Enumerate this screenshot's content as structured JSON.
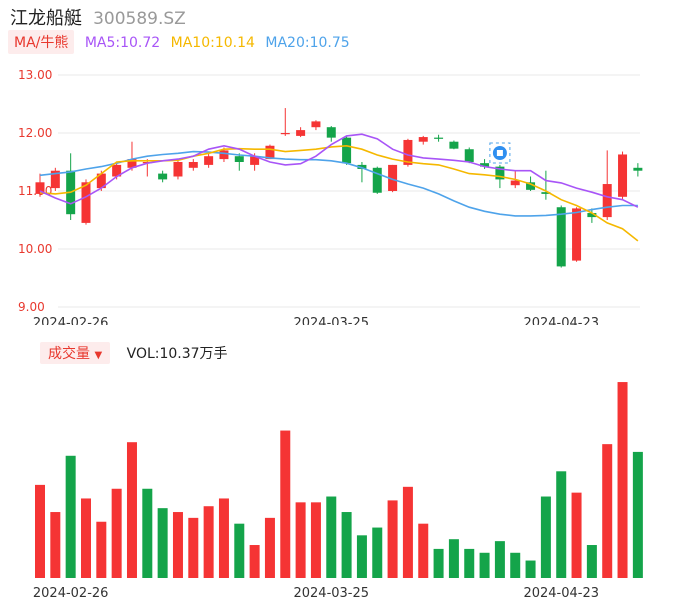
{
  "header": {
    "name": "江龙船艇",
    "code": "300589.SZ"
  },
  "ma": {
    "tag": "MA/牛熊",
    "items": [
      {
        "label": "MA5:10.72",
        "color": "#a855f7"
      },
      {
        "label": "MA10:10.14",
        "color": "#f5b800"
      },
      {
        "label": "MA20:10.75",
        "color": "#4ea3ea"
      }
    ]
  },
  "volume": {
    "tag": "成交量",
    "tag_arrow": "▼",
    "label": "VOL:10.37万手"
  },
  "colors": {
    "up": "#f53434",
    "down": "#14a44a",
    "grid": "#e9e9e9",
    "axis_text": "#e8382e",
    "date_text": "#333333"
  },
  "chart_data": [
    {
      "type": "candlestick",
      "title": "",
      "yticks": [
        "13.00",
        "12.00",
        "11.00",
        "10.00",
        "9.00"
      ],
      "ylim": [
        9.0,
        13.0
      ],
      "xlabels": [
        {
          "index": 2,
          "text": "2024-02-26"
        },
        {
          "index": 19,
          "text": "2024-03-25"
        },
        {
          "index": 34,
          "text": "2024-04-23"
        }
      ],
      "candles": [
        {
          "o": 10.95,
          "h": 11.3,
          "l": 10.9,
          "c": 11.15
        },
        {
          "o": 11.05,
          "h": 11.4,
          "l": 11.0,
          "c": 11.35
        },
        {
          "o": 11.35,
          "h": 11.65,
          "l": 10.5,
          "c": 10.6
        },
        {
          "o": 10.45,
          "h": 11.2,
          "l": 10.42,
          "c": 11.15
        },
        {
          "o": 11.05,
          "h": 11.35,
          "l": 11.0,
          "c": 11.3
        },
        {
          "o": 11.25,
          "h": 11.5,
          "l": 11.2,
          "c": 11.45
        },
        {
          "o": 11.4,
          "h": 11.85,
          "l": 11.35,
          "c": 11.55
        },
        {
          "o": 11.5,
          "h": 11.55,
          "l": 11.25,
          "c": 11.5
        },
        {
          "o": 11.3,
          "h": 11.35,
          "l": 11.15,
          "c": 11.2
        },
        {
          "o": 11.25,
          "h": 11.55,
          "l": 11.2,
          "c": 11.5
        },
        {
          "o": 11.4,
          "h": 11.55,
          "l": 11.35,
          "c": 11.5
        },
        {
          "o": 11.45,
          "h": 11.65,
          "l": 11.4,
          "c": 11.6
        },
        {
          "o": 11.55,
          "h": 11.75,
          "l": 11.5,
          "c": 11.7
        },
        {
          "o": 11.6,
          "h": 11.65,
          "l": 11.35,
          "c": 11.5
        },
        {
          "o": 11.45,
          "h": 11.65,
          "l": 11.35,
          "c": 11.6
        },
        {
          "o": 11.55,
          "h": 11.8,
          "l": 11.55,
          "c": 11.78
        },
        {
          "o": 11.98,
          "h": 12.43,
          "l": 11.95,
          "c": 12.0
        },
        {
          "o": 11.95,
          "h": 12.1,
          "l": 11.93,
          "c": 12.05
        },
        {
          "o": 12.1,
          "h": 12.22,
          "l": 12.05,
          "c": 12.2
        },
        {
          "o": 12.1,
          "h": 12.12,
          "l": 11.85,
          "c": 11.92
        },
        {
          "o": 11.92,
          "h": 11.95,
          "l": 11.45,
          "c": 11.48
        },
        {
          "o": 11.45,
          "h": 11.5,
          "l": 11.15,
          "c": 11.38
        },
        {
          "o": 11.4,
          "h": 11.42,
          "l": 10.95,
          "c": 10.97
        },
        {
          "o": 11.0,
          "h": 11.45,
          "l": 10.98,
          "c": 11.45
        },
        {
          "o": 11.45,
          "h": 11.9,
          "l": 11.42,
          "c": 11.88
        },
        {
          "o": 11.85,
          "h": 11.95,
          "l": 11.8,
          "c": 11.93
        },
        {
          "o": 11.92,
          "h": 11.97,
          "l": 11.85,
          "c": 11.9
        },
        {
          "o": 11.85,
          "h": 11.87,
          "l": 11.72,
          "c": 11.73
        },
        {
          "o": 11.72,
          "h": 11.75,
          "l": 11.48,
          "c": 11.5
        },
        {
          "o": 11.48,
          "h": 11.55,
          "l": 11.38,
          "c": 11.42
        },
        {
          "o": 11.42,
          "h": 11.45,
          "l": 11.05,
          "c": 11.2
        },
        {
          "o": 11.1,
          "h": 11.35,
          "l": 11.05,
          "c": 11.18
        },
        {
          "o": 11.15,
          "h": 11.25,
          "l": 11.0,
          "c": 11.02
        },
        {
          "o": 10.98,
          "h": 11.35,
          "l": 10.85,
          "c": 10.95
        },
        {
          "o": 10.72,
          "h": 10.75,
          "l": 9.68,
          "c": 9.7
        },
        {
          "o": 9.8,
          "h": 10.72,
          "l": 9.78,
          "c": 10.7
        },
        {
          "o": 10.62,
          "h": 10.7,
          "l": 10.45,
          "c": 10.55
        },
        {
          "o": 10.55,
          "h": 11.7,
          "l": 10.5,
          "c": 11.12
        },
        {
          "o": 10.9,
          "h": 11.68,
          "l": 10.85,
          "c": 11.63
        },
        {
          "o": 11.4,
          "h": 11.48,
          "l": 11.25,
          "c": 11.35
        }
      ],
      "ma5": [
        11.0,
        10.88,
        10.78,
        10.9,
        11.05,
        11.25,
        11.4,
        11.48,
        11.52,
        11.55,
        11.6,
        11.72,
        11.78,
        11.72,
        11.6,
        11.5,
        11.45,
        11.47,
        11.6,
        11.8,
        11.95,
        11.98,
        11.9,
        11.72,
        11.62,
        11.57,
        11.55,
        11.53,
        11.5,
        11.42,
        11.38,
        11.35,
        11.35,
        11.18,
        11.14,
        11.05,
        10.98,
        10.9,
        10.85,
        10.72
      ],
      "ma10": [
        10.97,
        10.95,
        10.98,
        11.1,
        11.3,
        11.5,
        11.52,
        11.52,
        11.52,
        11.53,
        11.6,
        11.65,
        11.72,
        11.73,
        11.72,
        11.72,
        11.68,
        11.7,
        11.72,
        11.76,
        11.78,
        11.72,
        11.62,
        11.55,
        11.5,
        11.47,
        11.45,
        11.38,
        11.3,
        11.28,
        11.25,
        11.2,
        11.12,
        11.0,
        10.85,
        10.75,
        10.62,
        10.45,
        10.35,
        10.14
      ],
      "ma20": [
        11.27,
        11.3,
        11.33,
        11.38,
        11.42,
        11.48,
        11.55,
        11.6,
        11.63,
        11.65,
        11.68,
        11.67,
        11.65,
        11.62,
        11.6,
        11.57,
        11.55,
        11.54,
        11.54,
        11.52,
        11.48,
        11.4,
        11.3,
        11.2,
        11.12,
        11.05,
        10.95,
        10.83,
        10.72,
        10.65,
        10.6,
        10.57,
        10.57,
        10.58,
        10.6,
        10.63,
        10.68,
        10.72,
        10.75,
        10.75
      ],
      "marker": {
        "index": 30,
        "icon": "trade-signal-icon"
      }
    },
    {
      "type": "bar",
      "title": "",
      "series_name": "VOL",
      "ymax": 100,
      "xlabels": [
        {
          "index": 2,
          "text": "2024-02-26"
        },
        {
          "index": 19,
          "text": "2024-03-25"
        },
        {
          "index": 34,
          "text": "2024-04-23"
        }
      ],
      "bars": [
        {
          "v": 48,
          "up": true
        },
        {
          "v": 34,
          "up": true
        },
        {
          "v": 63,
          "up": false
        },
        {
          "v": 41,
          "up": true
        },
        {
          "v": 29,
          "up": true
        },
        {
          "v": 46,
          "up": true
        },
        {
          "v": 70,
          "up": true
        },
        {
          "v": 46,
          "up": false
        },
        {
          "v": 36,
          "up": false
        },
        {
          "v": 34,
          "up": true
        },
        {
          "v": 31,
          "up": true
        },
        {
          "v": 37,
          "up": true
        },
        {
          "v": 41,
          "up": true
        },
        {
          "v": 28,
          "up": false
        },
        {
          "v": 17,
          "up": true
        },
        {
          "v": 31,
          "up": true
        },
        {
          "v": 76,
          "up": true
        },
        {
          "v": 39,
          "up": true
        },
        {
          "v": 39,
          "up": true
        },
        {
          "v": 42,
          "up": false
        },
        {
          "v": 34,
          "up": false
        },
        {
          "v": 22,
          "up": false
        },
        {
          "v": 26,
          "up": false
        },
        {
          "v": 40,
          "up": true
        },
        {
          "v": 47,
          "up": true
        },
        {
          "v": 28,
          "up": true
        },
        {
          "v": 15,
          "up": false
        },
        {
          "v": 20,
          "up": false
        },
        {
          "v": 15,
          "up": false
        },
        {
          "v": 13,
          "up": false
        },
        {
          "v": 19,
          "up": false
        },
        {
          "v": 13,
          "up": false
        },
        {
          "v": 9,
          "up": false
        },
        {
          "v": 42,
          "up": false
        },
        {
          "v": 55,
          "up": false
        },
        {
          "v": 44,
          "up": true
        },
        {
          "v": 17,
          "up": false
        },
        {
          "v": 69,
          "up": true
        },
        {
          "v": 101,
          "up": true
        },
        {
          "v": 65,
          "up": false
        }
      ]
    }
  ]
}
